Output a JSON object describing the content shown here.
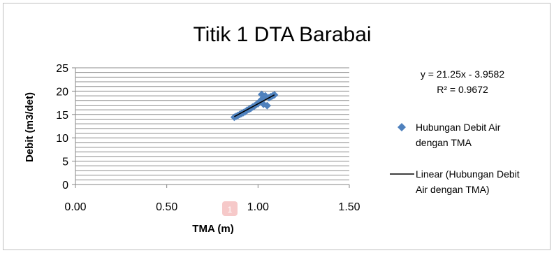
{
  "chart_data": {
    "type": "scatter",
    "title": "Titik 1 DTA Barabai",
    "xlabel": "TMA (m)",
    "ylabel": "Debit (m3/det)",
    "xlim": [
      0,
      1.5
    ],
    "ylim": [
      0,
      25
    ],
    "x_ticks": [
      "0.00",
      "0.50",
      "1.00",
      "1.50"
    ],
    "y_ticks": [
      "0",
      "5",
      "10",
      "15",
      "20",
      "25"
    ],
    "grid": "horizontal",
    "legend_position": "right",
    "series": [
      {
        "name": "Hubungan Debit Air dengan TMA",
        "marker": "diamond",
        "color": "#4f81bd",
        "x": [
          0.87,
          0.88,
          0.89,
          0.9,
          0.91,
          0.92,
          0.93,
          0.94,
          0.95,
          0.96,
          0.97,
          0.98,
          0.99,
          1.0,
          1.01,
          1.02,
          1.02,
          1.03,
          1.03,
          1.04,
          1.05,
          1.06,
          1.07,
          1.08,
          1.09
        ],
        "y": [
          14.4,
          14.6,
          14.8,
          15.0,
          15.2,
          15.4,
          15.6,
          15.9,
          16.1,
          16.3,
          16.6,
          16.8,
          17.1,
          17.3,
          17.8,
          18.2,
          19.3,
          18.5,
          17.2,
          19.0,
          16.9,
          18.6,
          18.8,
          19.0,
          19.2
        ]
      }
    ],
    "trendline": {
      "name": "Linear (Hubungan Debit Air dengan TMA)",
      "color": "#000000",
      "slope": 21.25,
      "intercept": -3.9582,
      "x_range": [
        0.87,
        1.09
      ],
      "equation": "y = 21.25x - 3.9582",
      "r_squared": "R² = 0.9672"
    },
    "legend": {
      "series_line1": "Hubungan Debit Air",
      "series_line2": "dengan TMA",
      "trend_line1": "Linear (Hubungan Debit",
      "trend_line2": "Air dengan TMA)"
    }
  },
  "page_marker": "1"
}
